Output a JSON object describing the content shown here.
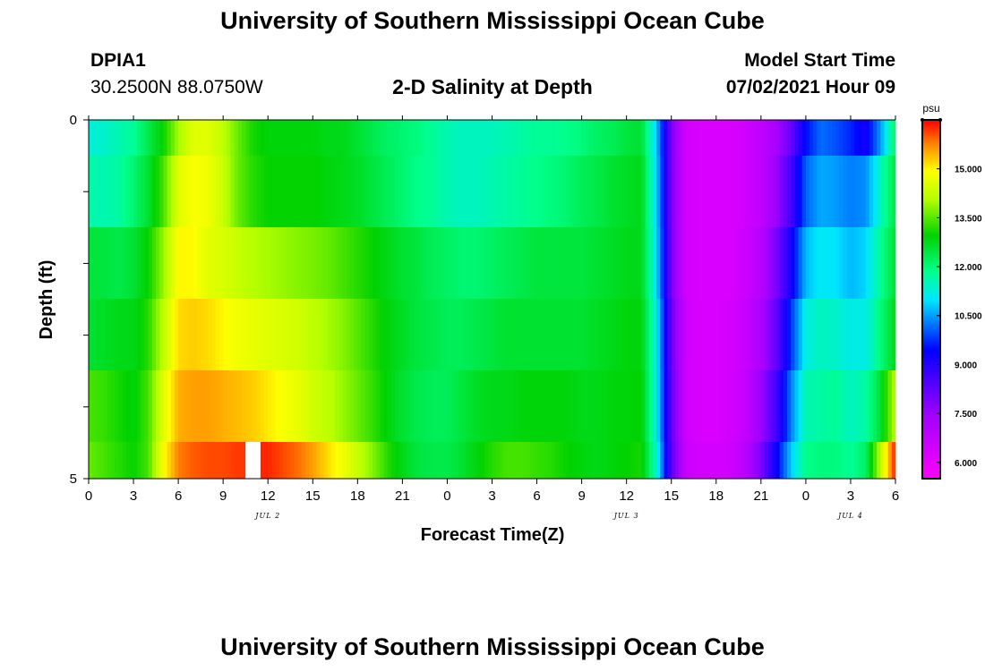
{
  "header": {
    "title": "University of Southern Mississippi Ocean Cube",
    "station_id": "DPIA1",
    "station_coords": "30.2500N  88.0750W",
    "plot_title": "2-D Salinity at Depth",
    "model_start_label": "Model Start Time",
    "model_start_value": "07/02/2021 Hour 09"
  },
  "footer": {
    "title": "University of Southern Mississippi Ocean Cube"
  },
  "chart_data": {
    "type": "heatmap",
    "title": "2-D Salinity at Depth",
    "xlabel": "Forecast Time(Z)",
    "ylabel": "Depth (ft)",
    "x_start_hour": 0,
    "x_end_hour": 54,
    "x_tick_labels": [
      "0",
      "3",
      "6",
      "9",
      "12",
      "15",
      "18",
      "21",
      "0",
      "3",
      "6",
      "9",
      "12",
      "15",
      "18",
      "21",
      "0",
      "3",
      "6"
    ],
    "date_labels": [
      {
        "label": "JUL 2",
        "hour": 12
      },
      {
        "label": "JUL 3",
        "hour": 36
      },
      {
        "label": "JUL 4",
        "hour": 51
      }
    ],
    "y_tick_labels": [
      {
        "label": "0",
        "depth": 0
      },
      {
        "label": "5",
        "depth": 5
      }
    ],
    "ylim": [
      0,
      5
    ],
    "depth_levels": [
      0.25,
      1.0,
      2.0,
      3.0,
      4.0,
      4.75
    ],
    "colorbar": {
      "unit": "psu",
      "min": 5.5,
      "max": 16.5,
      "ticks": [
        "6.000",
        "7.500",
        "9.000",
        "10.500",
        "12.000",
        "13.500",
        "15.000"
      ],
      "tick_values": [
        6.0,
        7.5,
        9.0,
        10.5,
        12.0,
        13.5,
        15.0
      ]
    },
    "missing_cells": [
      {
        "hour": 11,
        "depth_level": 5
      }
    ],
    "salinity_psu": [
      [
        11.3,
        11.4,
        11.6,
        11.8,
        12.4,
        13.0,
        14.0,
        14.6,
        14.6,
        14.2,
        13.6,
        13.1,
        12.9,
        12.9,
        12.9,
        12.9,
        12.8,
        12.8,
        12.6,
        12.4,
        12.2,
        12.1,
        12.0,
        11.8,
        11.6,
        11.5,
        11.5,
        11.5,
        11.6,
        11.7,
        11.8,
        11.8,
        11.9,
        12.0,
        12.2,
        12.3,
        12.5,
        12.6,
        10.8,
        8.0,
        6.4,
        6.3,
        6.3,
        6.3,
        6.5,
        6.8,
        7.3,
        8.2,
        9.5,
        10.2,
        10.0,
        9.7,
        9.2,
        10.5,
        12.2
      ],
      [
        11.7,
        11.6,
        11.7,
        12.1,
        12.6,
        13.4,
        14.6,
        14.9,
        14.8,
        14.3,
        13.6,
        13.2,
        13.0,
        13.0,
        13.0,
        13.0,
        12.9,
        12.8,
        12.7,
        12.5,
        12.3,
        12.1,
        11.9,
        11.8,
        11.6,
        11.5,
        11.5,
        11.6,
        11.7,
        11.8,
        11.9,
        12.0,
        12.1,
        12.3,
        12.4,
        12.6,
        12.7,
        12.8,
        10.9,
        8.0,
        6.4,
        6.3,
        6.3,
        6.3,
        6.5,
        6.8,
        7.5,
        8.6,
        10.1,
        10.6,
        10.5,
        10.3,
        10.4,
        11.5,
        12.5
      ],
      [
        12.5,
        12.5,
        12.4,
        12.6,
        13.0,
        13.9,
        15.0,
        15.0,
        14.6,
        14.5,
        14.3,
        14.1,
        14.0,
        13.9,
        13.8,
        13.7,
        13.6,
        13.4,
        13.2,
        13.0,
        12.8,
        12.6,
        12.5,
        12.3,
        12.2,
        12.1,
        12.1,
        12.2,
        12.3,
        12.4,
        12.5,
        12.5,
        12.5,
        12.5,
        12.6,
        12.7,
        12.8,
        12.8,
        11.0,
        8.0,
        6.4,
        6.3,
        6.3,
        6.3,
        6.6,
        7.0,
        7.9,
        9.2,
        10.7,
        11.1,
        11.0,
        10.7,
        10.9,
        11.8,
        12.6
      ],
      [
        12.6,
        12.7,
        12.8,
        12.8,
        13.2,
        14.2,
        15.2,
        15.3,
        15.2,
        15.0,
        14.8,
        14.7,
        14.6,
        14.5,
        14.4,
        14.2,
        14.0,
        13.8,
        13.5,
        13.2,
        12.9,
        12.7,
        12.5,
        12.4,
        12.3,
        12.3,
        12.4,
        12.5,
        12.6,
        12.6,
        12.6,
        12.6,
        12.6,
        12.6,
        12.7,
        12.8,
        12.9,
        12.9,
        11.2,
        8.2,
        6.5,
        6.3,
        6.3,
        6.4,
        6.7,
        7.2,
        8.2,
        9.8,
        11.2,
        11.5,
        11.4,
        11.2,
        11.2,
        12.0,
        12.8
      ],
      [
        13.4,
        13.3,
        13.1,
        12.9,
        13.4,
        14.6,
        15.5,
        15.6,
        15.6,
        15.5,
        15.4,
        15.3,
        15.1,
        14.9,
        14.7,
        14.4,
        14.2,
        13.9,
        13.6,
        13.3,
        12.9,
        12.6,
        12.4,
        12.3,
        12.3,
        12.5,
        12.7,
        12.8,
        12.8,
        12.9,
        12.9,
        12.9,
        12.9,
        12.8,
        12.8,
        12.9,
        12.9,
        13.0,
        11.2,
        8.3,
        6.5,
        6.3,
        6.3,
        6.4,
        6.8,
        7.5,
        8.6,
        10.3,
        11.6,
        11.7,
        11.8,
        11.5,
        11.7,
        12.6,
        14.2
      ],
      [
        13.6,
        13.4,
        13.2,
        13.0,
        13.4,
        14.9,
        15.8,
        16.0,
        16.1,
        16.1,
        16.2,
        null,
        16.3,
        16.1,
        15.9,
        15.6,
        15.2,
        14.8,
        14.3,
        13.8,
        13.2,
        12.8,
        12.5,
        12.4,
        12.4,
        12.6,
        12.9,
        13.2,
        13.4,
        13.4,
        13.3,
        13.2,
        13.0,
        12.9,
        12.8,
        12.9,
        13.0,
        13.1,
        11.4,
        8.4,
        6.6,
        6.4,
        6.4,
        6.5,
        7.0,
        7.9,
        9.3,
        10.8,
        11.9,
        12.0,
        12.0,
        11.8,
        12.2,
        14.2,
        16.4
      ]
    ]
  }
}
